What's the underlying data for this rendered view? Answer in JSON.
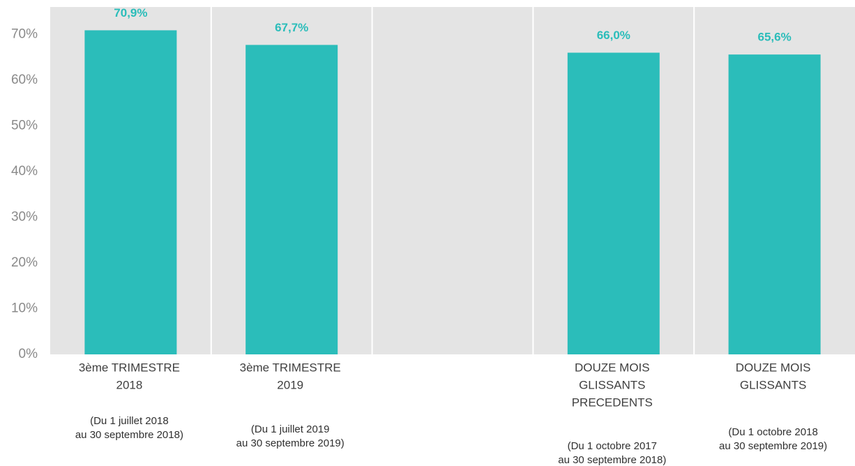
{
  "chart_data": {
    "type": "bar",
    "categories": [
      [
        "3ème TRIMESTRE",
        "2018"
      ],
      [
        "3ème TRIMESTRE",
        "2019"
      ],
      null,
      [
        "DOUZE MOIS",
        "GLISSANTS",
        "PRECEDENTS"
      ],
      [
        "DOUZE MOIS",
        "GLISSANTS"
      ]
    ],
    "category_notes": [
      [
        "(Du 1 juillet 2018",
        "au 30 septembre 2018)"
      ],
      [
        "(Du 1 juillet 2019",
        "au 30 septembre 2019)"
      ],
      null,
      [
        "(Du 1 octobre 2017",
        "au 30 septembre 2018)"
      ],
      [
        "(Du 1 octobre 2018",
        "au 30 septembre 2019)"
      ]
    ],
    "values": [
      70.9,
      67.7,
      null,
      66.0,
      65.6
    ],
    "value_labels": [
      "70,9%",
      "67,7%",
      null,
      "66,0%",
      "65,6%"
    ],
    "color": "#2bbdba",
    "ylim": [
      0,
      76
    ],
    "yticks": [
      {
        "value": 0,
        "label": "0%"
      },
      {
        "value": 10,
        "label": "10%"
      },
      {
        "value": 20,
        "label": "20%"
      },
      {
        "value": 30,
        "label": "30%"
      },
      {
        "value": 40,
        "label": "40%"
      },
      {
        "value": 50,
        "label": "50%"
      },
      {
        "value": 60,
        "label": "60%"
      },
      {
        "value": 70,
        "label": "70%"
      }
    ]
  }
}
